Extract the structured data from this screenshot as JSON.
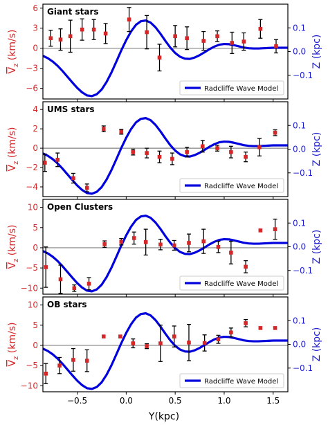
{
  "chart_data": {
    "type": "scatter",
    "xlabel": "Y(kpc)",
    "xlim": [
      -0.85,
      1.65
    ],
    "xticks": [
      -0.5,
      0.0,
      0.5,
      1.0,
      1.5
    ],
    "xtick_labels": [
      "−0.5",
      "0.0",
      "0.5",
      "1.0",
      "1.5"
    ],
    "left_ylabel_main": "V",
    "left_ylabel_sub": "z",
    "left_ylabel_unit": " (km/s)",
    "right_ylabel": "Z (kpc)",
    "right_ylim": [
      -0.2,
      0.2
    ],
    "right_ylim_note": "approximate",
    "right_yticks": [
      -0.1,
      0.0,
      0.1
    ],
    "right_ytick_labels": [
      "−0.1",
      "0.0",
      "0.1"
    ],
    "legend_label": "Radcliffe Wave Model",
    "legend_position": "lower-right",
    "colors": {
      "points": "#d62728",
      "model": "#0000dd",
      "zero_line": "#808080",
      "errorbars": "#000000"
    },
    "model": {
      "name": "Radcliffe Wave Model",
      "x": [
        -0.85,
        -0.8,
        -0.75,
        -0.7,
        -0.65,
        -0.6,
        -0.55,
        -0.5,
        -0.45,
        -0.4,
        -0.35,
        -0.3,
        -0.25,
        -0.2,
        -0.15,
        -0.1,
        -0.05,
        0.0,
        0.05,
        0.1,
        0.15,
        0.2,
        0.25,
        0.3,
        0.35,
        0.4,
        0.45,
        0.5,
        0.55,
        0.6,
        0.65,
        0.7,
        0.75,
        0.8,
        0.85,
        0.9,
        0.95,
        1.0,
        1.05,
        1.1,
        1.15,
        1.2,
        1.25,
        1.3,
        1.35,
        1.4,
        1.45,
        1.5,
        1.55,
        1.6,
        1.65
      ],
      "z": [
        -0.018,
        -0.028,
        -0.042,
        -0.06,
        -0.082,
        -0.106,
        -0.13,
        -0.153,
        -0.172,
        -0.185,
        -0.188,
        -0.18,
        -0.16,
        -0.128,
        -0.088,
        -0.042,
        0.005,
        0.048,
        0.085,
        0.113,
        0.128,
        0.131,
        0.122,
        0.102,
        0.075,
        0.045,
        0.017,
        -0.006,
        -0.022,
        -0.03,
        -0.031,
        -0.025,
        -0.015,
        -0.003,
        0.01,
        0.021,
        0.029,
        0.032,
        0.031,
        0.027,
        0.022,
        0.017,
        0.014,
        0.013,
        0.013,
        0.014,
        0.015,
        0.016,
        0.016,
        0.016,
        0.016
      ]
    },
    "panels": [
      {
        "title": "Giant stars",
        "ylim": [
          -7.6,
          6.6
        ],
        "yticks": [
          -6,
          -3,
          0,
          3,
          6
        ],
        "ytick_labels": [
          "−6",
          "−3",
          "0",
          "3",
          "6"
        ],
        "points": [
          {
            "x": -0.77,
            "y": 1.5,
            "err": 1.2
          },
          {
            "x": -0.67,
            "y": 1.3,
            "err": 1.6
          },
          {
            "x": -0.57,
            "y": 1.8,
            "err": 2.4
          },
          {
            "x": -0.45,
            "y": 2.8,
            "err": 1.6
          },
          {
            "x": -0.33,
            "y": 2.8,
            "err": 1.5
          },
          {
            "x": -0.21,
            "y": 2.2,
            "err": 1.5
          },
          {
            "x": 0.03,
            "y": 4.3,
            "err": 1.8
          },
          {
            "x": 0.21,
            "y": 2.4,
            "err": 2.5
          },
          {
            "x": 0.34,
            "y": -1.4,
            "err": 2.0
          },
          {
            "x": 0.5,
            "y": 1.8,
            "err": 1.6
          },
          {
            "x": 0.62,
            "y": 1.5,
            "err": 1.7
          },
          {
            "x": 0.79,
            "y": 1.1,
            "err": 1.4
          },
          {
            "x": 0.93,
            "y": 1.8,
            "err": 0.8
          },
          {
            "x": 1.08,
            "y": 0.8,
            "err": 1.6
          },
          {
            "x": 1.2,
            "y": 1.0,
            "err": 1.3
          },
          {
            "x": 1.37,
            "y": 2.9,
            "err": 1.4
          },
          {
            "x": 1.53,
            "y": 0.3,
            "err": 1.0
          }
        ]
      },
      {
        "title": "UMS stars",
        "ylim": [
          -5.0,
          4.8
        ],
        "yticks": [
          -4,
          -2,
          0,
          2,
          4
        ],
        "ytick_labels": [
          "−4",
          "−2",
          "0",
          "2",
          "4"
        ],
        "points": [
          {
            "x": -0.83,
            "y": -1.5,
            "err": 0.9
          },
          {
            "x": -0.7,
            "y": -1.2,
            "err": 0.7
          },
          {
            "x": -0.54,
            "y": -3.1,
            "err": 0.5
          },
          {
            "x": -0.4,
            "y": -4.1,
            "err": 0.4
          },
          {
            "x": -0.23,
            "y": 2.0,
            "err": 0.3
          },
          {
            "x": -0.05,
            "y": 1.7,
            "err": 0.25
          },
          {
            "x": 0.07,
            "y": -0.4,
            "err": 0.3
          },
          {
            "x": 0.21,
            "y": -0.5,
            "err": 0.5
          },
          {
            "x": 0.34,
            "y": -0.9,
            "err": 0.6
          },
          {
            "x": 0.47,
            "y": -1.1,
            "err": 0.6
          },
          {
            "x": 0.62,
            "y": -0.4,
            "err": 0.5
          },
          {
            "x": 0.78,
            "y": 0.2,
            "err": 0.6
          },
          {
            "x": 0.93,
            "y": 0.0,
            "err": 0.3
          },
          {
            "x": 1.07,
            "y": -0.4,
            "err": 0.6
          },
          {
            "x": 1.22,
            "y": -0.9,
            "err": 0.5
          },
          {
            "x": 1.36,
            "y": 0.1,
            "err": 0.9
          },
          {
            "x": 1.52,
            "y": 1.6,
            "err": 0.3
          }
        ]
      },
      {
        "title": "Open Clusters",
        "ylim": [
          -11.5,
          12.0
        ],
        "yticks": [
          -10,
          -5,
          0,
          5,
          10
        ],
        "ytick_labels": [
          "−10",
          "−5",
          "0",
          "5",
          "10"
        ],
        "points": [
          {
            "x": -0.82,
            "y": -4.8,
            "err": 5.0
          },
          {
            "x": -0.67,
            "y": -7.8,
            "err": 3.5
          },
          {
            "x": -0.53,
            "y": -10.0,
            "err": 0.8
          },
          {
            "x": -0.38,
            "y": -8.9,
            "err": 1.5
          },
          {
            "x": -0.22,
            "y": 0.9,
            "err": 0.8
          },
          {
            "x": -0.05,
            "y": 1.5,
            "err": 0.8
          },
          {
            "x": 0.08,
            "y": 2.4,
            "err": 1.5
          },
          {
            "x": 0.2,
            "y": 1.4,
            "err": 3.2
          },
          {
            "x": 0.35,
            "y": 0.8,
            "err": 1.3
          },
          {
            "x": 0.49,
            "y": 0.6,
            "err": 1.2
          },
          {
            "x": 0.64,
            "y": 1.2,
            "err": 2.2
          },
          {
            "x": 0.79,
            "y": 1.6,
            "err": 3.0
          },
          {
            "x": 0.94,
            "y": 0.2,
            "err": 1.4
          },
          {
            "x": 1.07,
            "y": -1.2,
            "err": 2.8
          },
          {
            "x": 1.22,
            "y": -4.7,
            "err": 1.5
          },
          {
            "x": 1.37,
            "y": 4.3,
            "err": 0
          },
          {
            "x": 1.52,
            "y": 4.6,
            "err": 2.5
          }
        ]
      },
      {
        "title": "OB stars",
        "ylim": [
          -11.5,
          12.0
        ],
        "yticks": [
          -10,
          -5,
          0,
          5,
          10
        ],
        "ytick_labels": [
          "−10",
          "−5",
          "0",
          "5",
          "10"
        ],
        "points": [
          {
            "x": -0.82,
            "y": -7.0,
            "err": 2.5
          },
          {
            "x": -0.68,
            "y": -5.0,
            "err": 2.0
          },
          {
            "x": -0.54,
            "y": -3.6,
            "err": 2.8
          },
          {
            "x": -0.4,
            "y": -3.8,
            "err": 2.7
          },
          {
            "x": -0.23,
            "y": 2.2,
            "err": 0
          },
          {
            "x": -0.06,
            "y": 2.2,
            "err": 0
          },
          {
            "x": 0.07,
            "y": 0.5,
            "err": 1.1
          },
          {
            "x": 0.21,
            "y": -0.2,
            "err": 0.6
          },
          {
            "x": 0.35,
            "y": 0.5,
            "err": 4.5
          },
          {
            "x": 0.49,
            "y": 2.2,
            "err": 2.6
          },
          {
            "x": 0.64,
            "y": 0.7,
            "err": 4.5
          },
          {
            "x": 0.8,
            "y": 0.6,
            "err": 2.0
          },
          {
            "x": 0.94,
            "y": 1.5,
            "err": 1.0
          },
          {
            "x": 1.07,
            "y": 3.2,
            "err": 1.1
          },
          {
            "x": 1.22,
            "y": 5.5,
            "err": 0.9
          },
          {
            "x": 1.37,
            "y": 4.3,
            "err": 0
          },
          {
            "x": 1.52,
            "y": 4.3,
            "err": 0
          }
        ]
      }
    ]
  }
}
